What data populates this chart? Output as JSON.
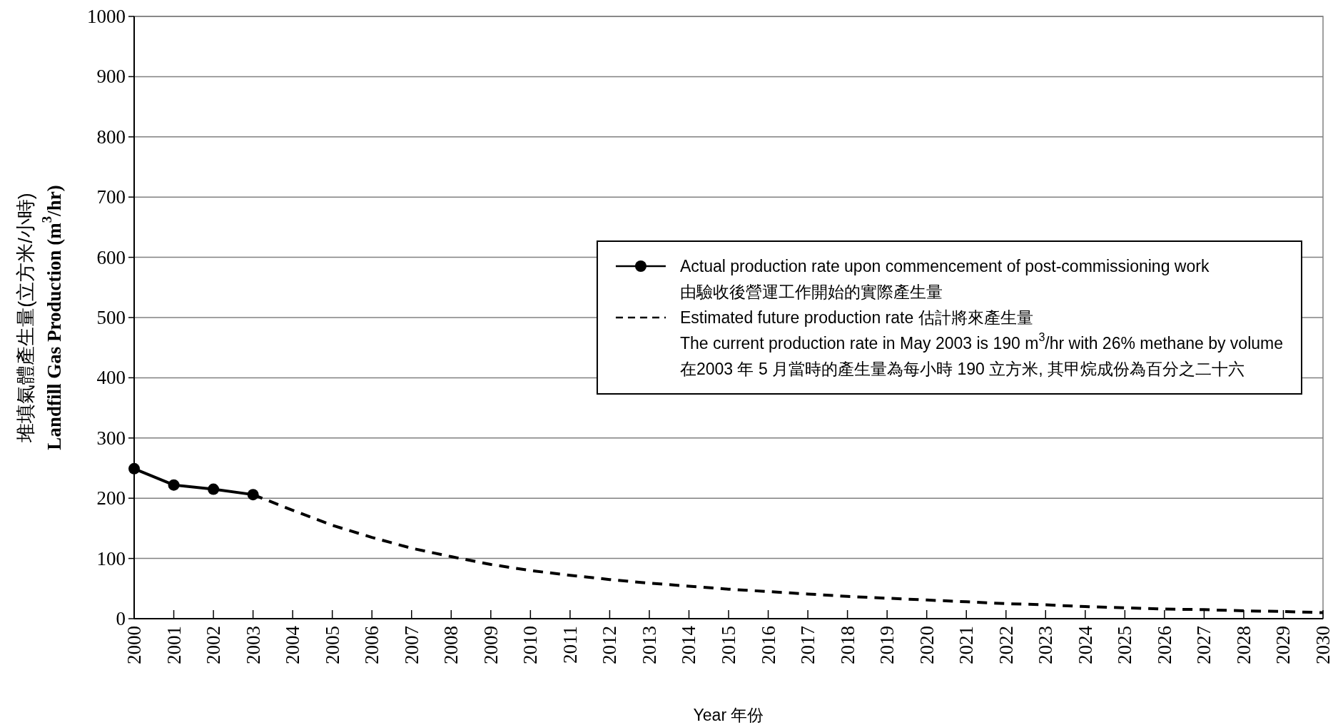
{
  "chart_data": {
    "type": "line",
    "xlabel": "Year 年份",
    "ylabel": "堆填氣體產生量(立方米/小時)\nLandfill Gas Production (m$^{3}$/hr)",
    "xlim": [
      2000,
      2030
    ],
    "xticks": [
      2000,
      2001,
      2002,
      2003,
      2004,
      2005,
      2006,
      2007,
      2008,
      2009,
      2010,
      2011,
      2012,
      2013,
      2014,
      2015,
      2016,
      2017,
      2018,
      2019,
      2020,
      2021,
      2022,
      2023,
      2024,
      2025,
      2026,
      2027,
      2028,
      2029,
      2030
    ],
    "ylim": [
      0,
      1000
    ],
    "yticks": [
      0,
      100,
      200,
      300,
      400,
      500,
      600,
      700,
      800,
      900,
      1000
    ],
    "grid": "y",
    "legend": "right",
    "series": [
      {
        "name": "Actual production rate upon commencement of post-commissioning work\n由驗收後營運工作開始的實際產生量",
        "color": "#000000",
        "marker": "circle",
        "line_style": "solid",
        "x": [
          2000,
          2001,
          2002,
          2003
        ],
        "values": [
          249,
          222,
          215,
          206
        ]
      },
      {
        "name": "Estimated future production rate 估計將來產生量",
        "color": "#000000",
        "marker": "none",
        "line_style": "dashed",
        "x": [
          2003,
          2004,
          2005,
          2006,
          2007,
          2008,
          2009,
          2010,
          2011,
          2012,
          2013,
          2014,
          2015,
          2016,
          2017,
          2018,
          2019,
          2020,
          2021,
          2022,
          2023,
          2024,
          2025,
          2026,
          2027,
          2028,
          2029,
          2030
        ],
        "values": [
          206,
          180,
          155,
          135,
          117,
          103,
          90,
          80,
          72,
          65,
          59,
          54,
          49,
          45,
          41,
          37,
          34,
          31,
          28,
          25,
          23,
          20,
          18,
          16,
          15,
          13,
          12,
          10
        ]
      }
    ],
    "annotations": [
      "The current production rate in May 2003 is 190 m$^{3}$/hr with 26% methane by volume",
      "在2003 年 5 月當時的產生量為每小時 190 立方米, 其甲烷成份為百分之二十六"
    ]
  }
}
